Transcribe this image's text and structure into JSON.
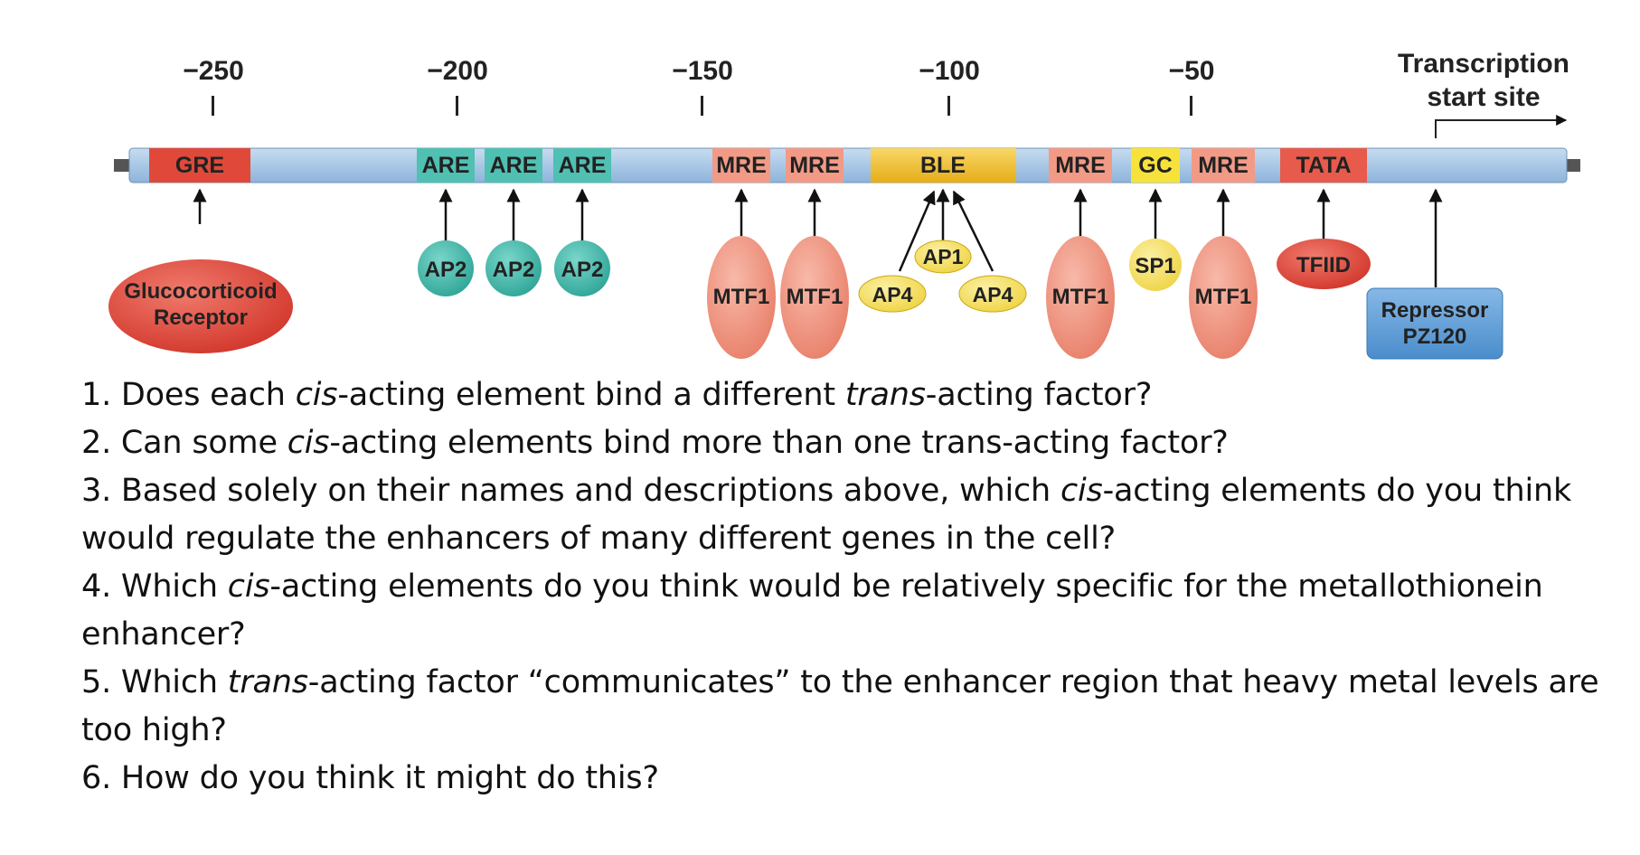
{
  "positions": [
    "−250",
    "−200",
    "−150",
    "−100",
    "−50"
  ],
  "tss": {
    "line1": "Transcription",
    "line2": "start site"
  },
  "elements": [
    "GRE",
    "ARE",
    "ARE",
    "ARE",
    "MRE",
    "MRE",
    "BLE",
    "MRE",
    "GC",
    "MRE",
    "TATA"
  ],
  "factors": {
    "glucocorticoid": {
      "line1": "Glucocorticoid",
      "line2": "Receptor"
    },
    "ap2": [
      "AP2",
      "AP2",
      "AP2"
    ],
    "mtf1": [
      "MTF1",
      "MTF1",
      "MTF1",
      "MTF1"
    ],
    "ap1": "AP1",
    "ap4": [
      "AP4",
      "AP4"
    ],
    "sp1": "SP1",
    "tfiid": "TFIID",
    "repressor": {
      "line1": "Repressor",
      "line2": "PZ120"
    }
  },
  "colors": {
    "dna": "#a9c8e6",
    "gre": "#e0493a",
    "are": "#4fc0b2",
    "mre": "#f29a86",
    "ble": "#f3c431",
    "gc": "#f7e23b",
    "tata": "#e85a4b",
    "receptor": "#dd3e33",
    "ap2": "#3fb3a5",
    "mtf1": "#ef8e78",
    "ap": "#f6e46b",
    "sp1": "#f7e23b",
    "tfiid": "#e0493a",
    "repressor": "#5d9fd8"
  },
  "questions": [
    {
      "pre": "1. Does each ",
      "em1": "cis",
      "mid": "-acting element bind a different ",
      "em2": "trans",
      "post": "-acting factor?"
    },
    {
      "pre": "2. Can some ",
      "em1": "cis",
      "mid": "-acting elements bind more than one trans-acting factor?",
      "em2": "",
      "post": ""
    },
    {
      "pre": "3. Based solely on their names and descriptions above, which ",
      "em1": "cis",
      "mid": "-acting elements do you think would regulate the enhancers of many different genes in the cell?",
      "em2": "",
      "post": ""
    },
    {
      "pre": "4. Which ",
      "em1": "cis",
      "mid": "-acting elements do you think would be relatively specific for the metallothionein enhancer?",
      "em2": "",
      "post": ""
    },
    {
      "pre": "5. Which ",
      "em1": "trans",
      "mid": "-acting factor “communicates” to the enhancer region that heavy metal levels are too high?",
      "em2": "",
      "post": ""
    },
    {
      "pre": "6. How do you think it might do this?",
      "em1": "",
      "mid": "",
      "em2": "",
      "post": ""
    }
  ]
}
